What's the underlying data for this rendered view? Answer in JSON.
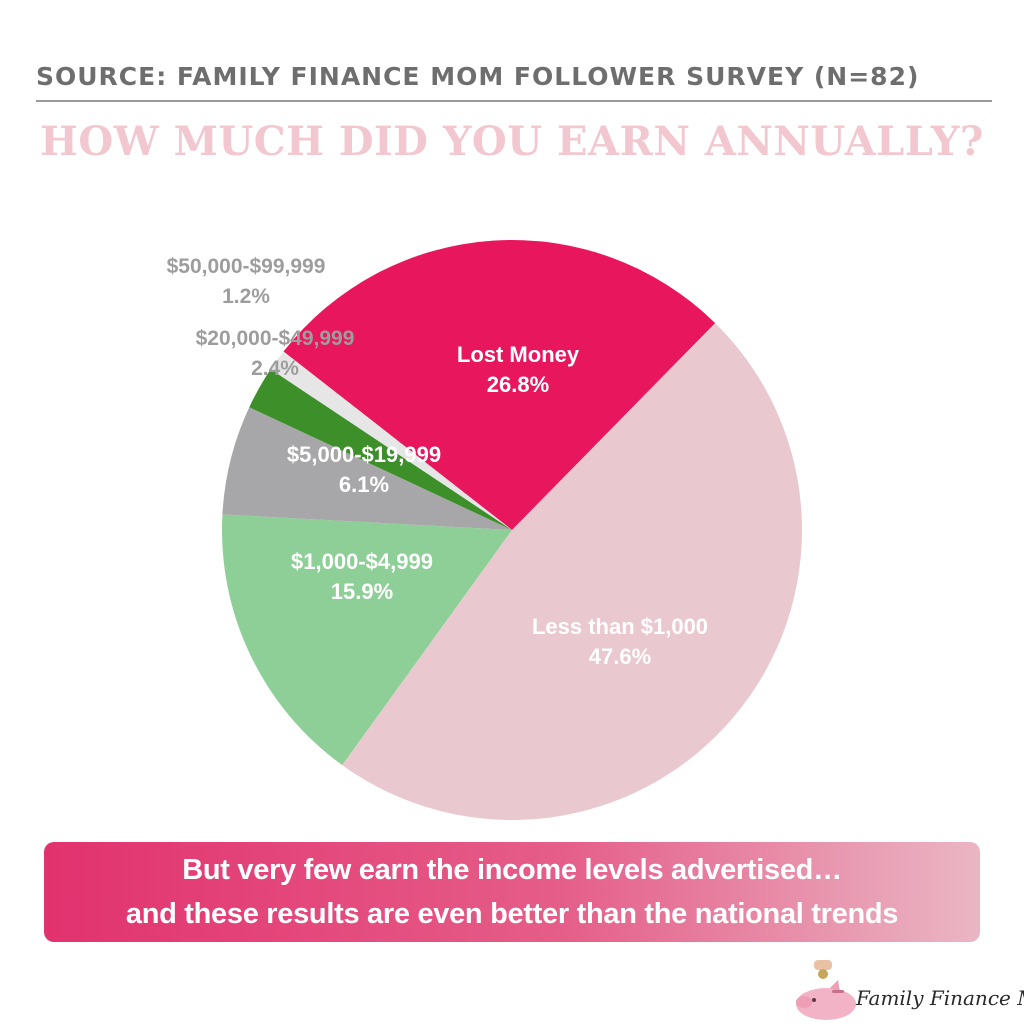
{
  "header": {
    "source": "SOURCE: FAMILY FINANCE MOM FOLLOWER SURVEY (N=82)",
    "title": "HOW MUCH DID YOU EARN ANNUALLY?"
  },
  "chart_data": {
    "type": "pie",
    "title": "HOW MUCH DID YOU EARN ANNUALLY?",
    "slices": [
      {
        "label": "Lost Money",
        "value": 26.8,
        "value_label": "26.8%",
        "color": "#e8175d",
        "label_color": "#ffffff"
      },
      {
        "label": "Less than $1,000",
        "value": 47.6,
        "value_label": "47.6%",
        "color": "#eac8cf",
        "label_color": "#ffffff"
      },
      {
        "label": "$1,000-$4,999",
        "value": 15.9,
        "value_label": "15.9%",
        "color": "#8ecf98",
        "label_color": "#ffffff"
      },
      {
        "label": "$5,000-$19,999",
        "value": 6.1,
        "value_label": "6.1%",
        "color": "#a7a7a9",
        "label_color": "#ffffff"
      },
      {
        "label": "$20,000-$49,999",
        "value": 2.4,
        "value_label": "2.4%",
        "color": "#3d8f2a",
        "label_color": "#9d9d9d"
      },
      {
        "label": "$50,000-$99,999",
        "value": 1.2,
        "value_label": "1.2%",
        "color": "#e6e6e6",
        "label_color": "#9d9d9d"
      }
    ]
  },
  "banner": {
    "line1": "But very few earn the income levels advertised…",
    "line2": "and these results are even better than the national trends"
  },
  "brand": {
    "name": "Family Finance Mom",
    "logo_icon": "piggy-bank-icon"
  }
}
